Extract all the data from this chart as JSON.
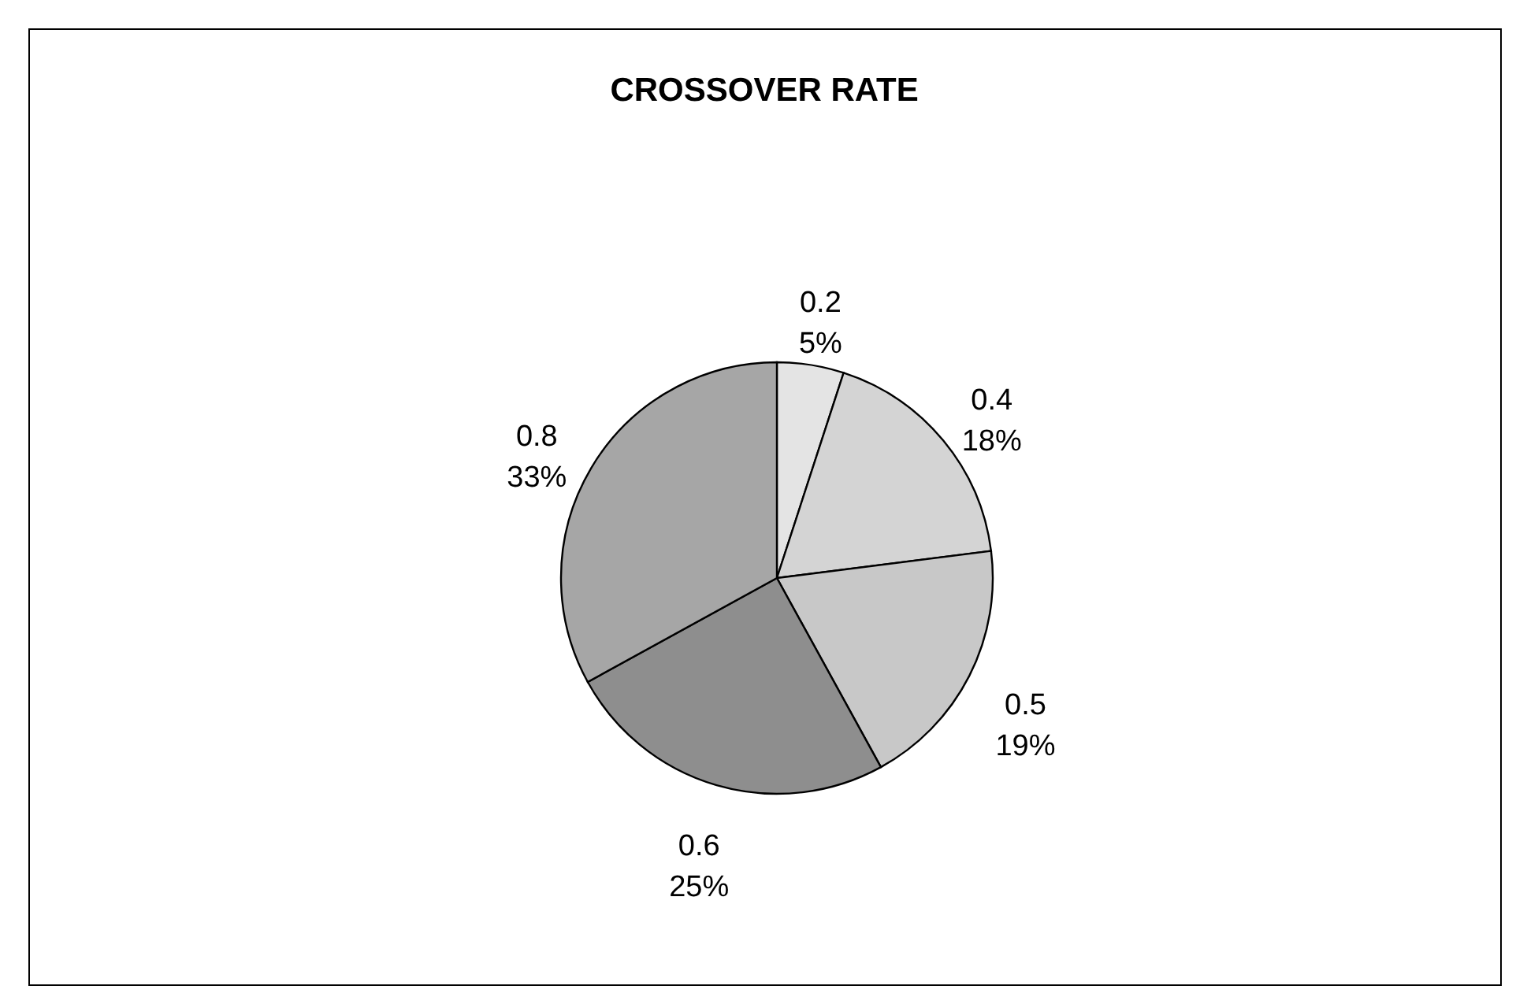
{
  "chart_data": {
    "type": "pie",
    "title": "CROSSOVER RATE",
    "categories": [
      "0.2",
      "0.4",
      "0.5",
      "0.6",
      "0.8"
    ],
    "values": [
      5,
      18,
      19,
      25,
      33
    ],
    "value_labels": [
      "5%",
      "18%",
      "19%",
      "25%",
      "33%"
    ],
    "colors": [
      "#e4e4e4",
      "#d4d4d4",
      "#c8c8c8",
      "#8e8e8e",
      "#a6a6a6"
    ],
    "legend": false
  }
}
